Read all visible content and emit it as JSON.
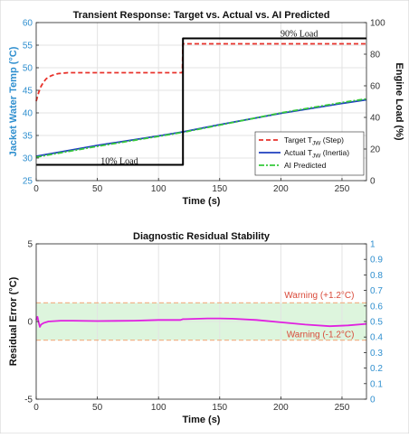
{
  "chart_data": [
    {
      "type": "line",
      "title": "Transient Response: Target vs. Actual vs. AI Predicted",
      "xlabel": "Time (s)",
      "ylabel": "Jacket Water Temp (°C)",
      "y2label": "Engine Load (%)",
      "xlim": [
        0,
        270
      ],
      "ylim": [
        25,
        60
      ],
      "y2lim": [
        0,
        100
      ],
      "xticks": [
        0,
        50,
        100,
        150,
        200,
        250
      ],
      "yticks": [
        25,
        30,
        35,
        40,
        45,
        50,
        55,
        60
      ],
      "y2ticks": [
        0,
        20,
        40,
        60,
        80,
        100
      ],
      "grid": true,
      "legend_position": "bottom-right",
      "series": [
        {
          "name": "Target T_JW (Step)",
          "legend_main": "Target T",
          "legend_sub": "JW",
          "legend_tail": " (Step)",
          "color": "#e8322b",
          "dash": "5,3",
          "axis": "left",
          "x": [
            0,
            2,
            4,
            6,
            8,
            10,
            12,
            15,
            18,
            22,
            26,
            30,
            40,
            60,
            80,
            100,
            119.5,
            120,
            150,
            200,
            270
          ],
          "y": [
            42.6,
            44.5,
            45.9,
            46.8,
            47.5,
            47.9,
            48.2,
            48.5,
            48.7,
            48.8,
            48.9,
            48.9,
            48.9,
            48.9,
            48.9,
            48.9,
            48.9,
            55.3,
            55.3,
            55.3,
            55.3
          ]
        },
        {
          "name": "Actual T_JW (Inertia)",
          "legend_main": "Actual T",
          "legend_sub": "JW",
          "legend_tail": " (Inertia)",
          "color": "#1f3fbf",
          "dash": "",
          "axis": "left",
          "x": [
            0,
            50,
            100,
            120,
            150,
            200,
            250,
            270
          ],
          "y": [
            30.4,
            32.8,
            34.9,
            35.8,
            37.4,
            39.9,
            42.1,
            42.9
          ]
        },
        {
          "name": "AI Predicted",
          "legend_main": "AI Predicted",
          "legend_sub": "",
          "legend_tail": "",
          "color": "#36c93b",
          "dash": "6,2,2,2",
          "axis": "left",
          "x": [
            0,
            50,
            100,
            120,
            150,
            200,
            250,
            270
          ],
          "y": [
            30.2,
            32.6,
            34.8,
            35.7,
            37.3,
            40.0,
            42.3,
            43.1
          ]
        },
        {
          "name": "Engine Load",
          "color": "#000000",
          "dash": "",
          "axis": "right",
          "x": [
            0,
            120,
            120,
            270
          ],
          "y": [
            10,
            10,
            90,
            90
          ]
        }
      ],
      "annotations": [
        {
          "text": "10% Load",
          "x": 68,
          "y": 29.3,
          "axis": "left"
        },
        {
          "text": "90% Load",
          "x": 215,
          "y": 57.5,
          "axis": "left"
        }
      ]
    },
    {
      "type": "line",
      "title": "Diagnostic Residual Stability",
      "xlabel": "Time (s)",
      "ylabel": "Residual Error (°C)",
      "xlim": [
        0,
        270
      ],
      "ylim": [
        -5,
        5
      ],
      "y2lim": [
        0,
        1
      ],
      "xticks": [
        0,
        50,
        100,
        150,
        200,
        250
      ],
      "yticks": [
        -5,
        0,
        5
      ],
      "y2ticks": [
        0,
        0.1,
        0.2,
        0.3,
        0.4,
        0.5,
        0.6,
        0.7,
        0.8,
        0.9,
        1
      ],
      "grid": true,
      "band": {
        "low": -1.2,
        "high": 1.2,
        "color": "#ddf5dd",
        "line_color": "#f0b48a"
      },
      "series": [
        {
          "name": "Residual",
          "color": "#e020e0",
          "axis": "left",
          "x": [
            0,
            1,
            2,
            3,
            4,
            6,
            10,
            20,
            30,
            50,
            80,
            100,
            118,
            120,
            122,
            140,
            150,
            160,
            180,
            200,
            220,
            240,
            255,
            270
          ],
          "y": [
            0.1,
            0.3,
            -0.05,
            -0.35,
            -0.2,
            -0.1,
            0.0,
            0.05,
            0.05,
            0.03,
            0.05,
            0.1,
            0.1,
            0.15,
            0.15,
            0.2,
            0.2,
            0.18,
            0.1,
            -0.05,
            -0.2,
            -0.3,
            -0.25,
            -0.15
          ]
        }
      ],
      "annotations": [
        {
          "text": "Warning (+1.2°C)",
          "x": 260,
          "y": 1.7
        },
        {
          "text": "Warning (-1.2°C)",
          "x": 260,
          "y": -0.85
        }
      ]
    }
  ]
}
